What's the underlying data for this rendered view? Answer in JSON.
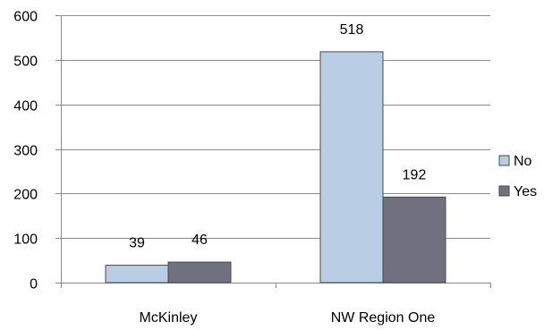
{
  "chart_data": {
    "type": "bar",
    "categories": [
      "McKinley",
      "NW Region One"
    ],
    "series": [
      {
        "name": "No",
        "values": [
          39,
          518
        ],
        "color": "#b9cde5"
      },
      {
        "name": "Yes",
        "values": [
          46,
          192
        ],
        "color": "#71707f"
      }
    ],
    "ylim": [
      0,
      600
    ],
    "yticks": [
      0,
      100,
      200,
      300,
      400,
      500,
      600
    ],
    "grid": true,
    "legend_position": "right",
    "data_labels": true,
    "gridline_color": "#8c8c8c",
    "bar_stroke_color": "#4a4a4a"
  }
}
